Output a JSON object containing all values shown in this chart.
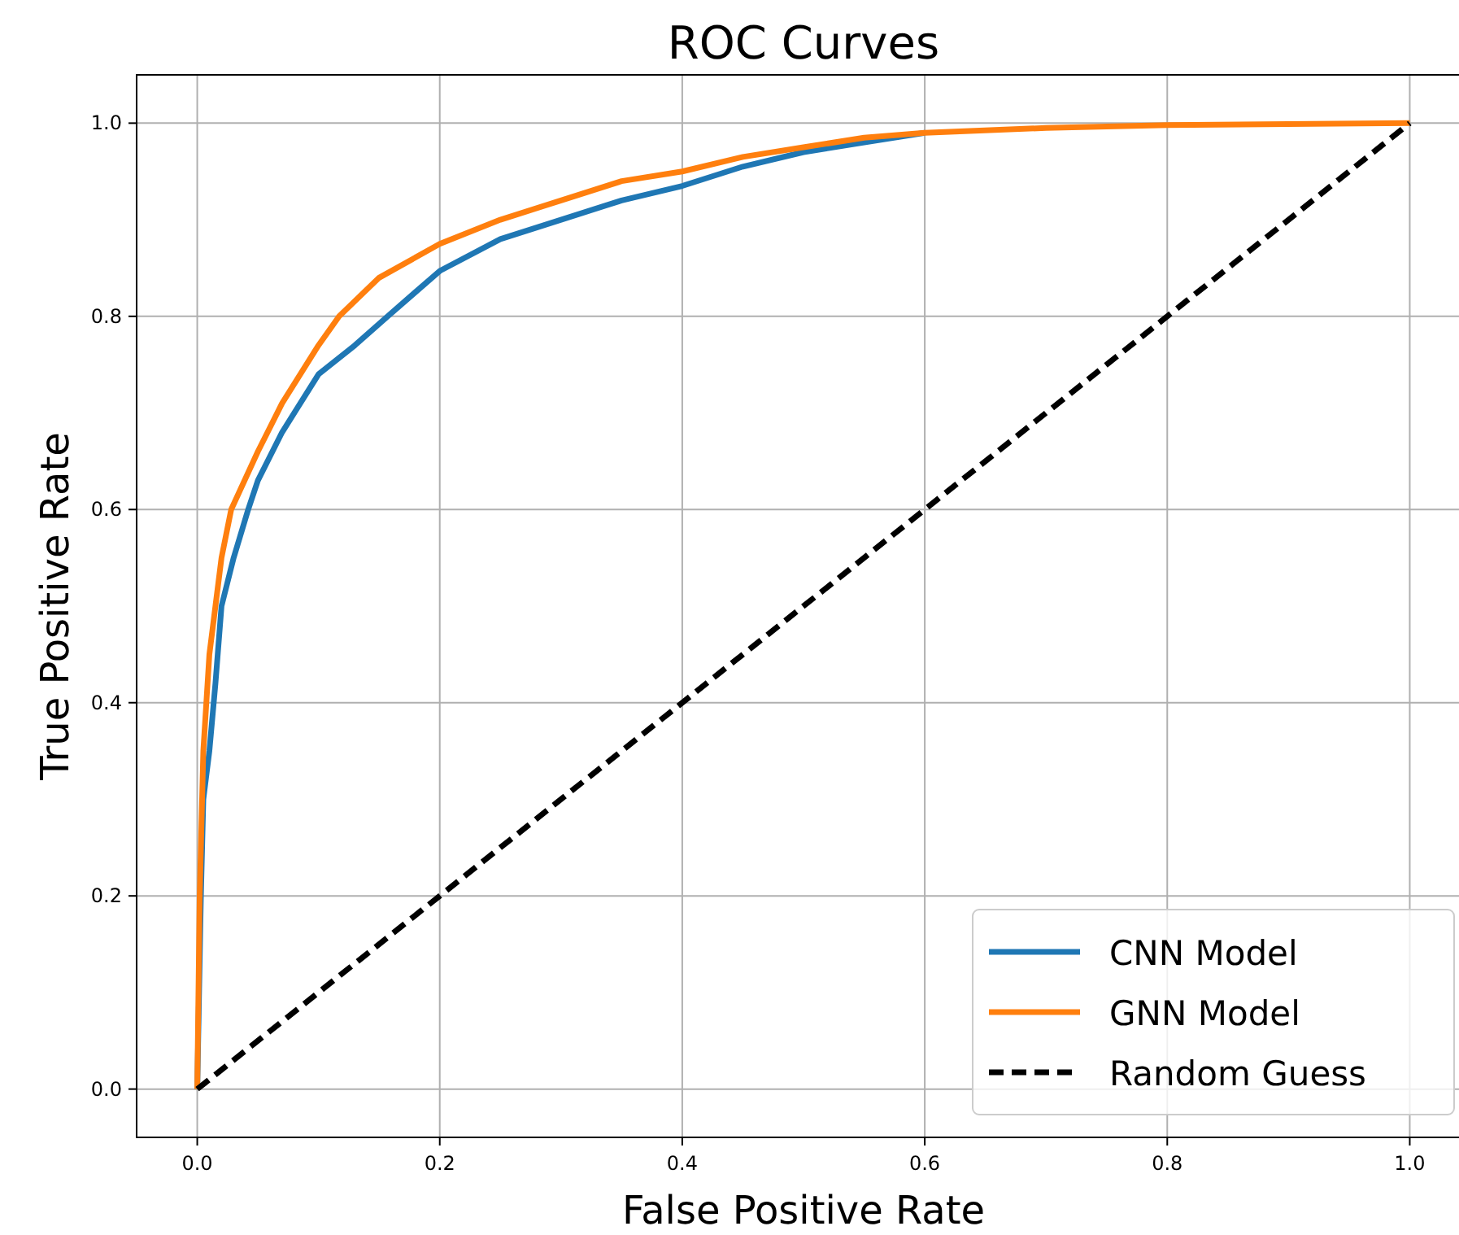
{
  "chart_data": {
    "type": "line",
    "title": "ROC Curves",
    "xlabel": "False Positive Rate",
    "ylabel": "True Positive Rate",
    "xlim": [
      -0.05,
      1.05
    ],
    "ylim": [
      -0.05,
      1.05
    ],
    "xticks": [
      {
        "value": 0,
        "label": "0.0"
      },
      0.2,
      0.4,
      0.6,
      0.8,
      {
        "value": 1,
        "label": "1.0"
      }
    ],
    "yticks": [
      {
        "value": 0,
        "label": "0.0"
      },
      0.2,
      0.4,
      0.6,
      0.8,
      {
        "value": 1,
        "label": "1.0"
      }
    ],
    "grid": true,
    "legend": "bottom right",
    "series": [
      {
        "name": "CNN Model",
        "color": "#1f77b4",
        "line_style": "solid",
        "x": [
          0,
          0.003,
          0.005,
          0.01,
          0.015,
          0.02,
          0.03,
          0.042,
          0.05,
          0.07,
          0.1,
          0.13,
          0.157,
          0.2,
          0.25,
          0.3,
          0.35,
          0.4,
          0.45,
          0.5,
          0.55,
          0.6
        ],
        "values": [
          0,
          0.2,
          0.3,
          0.35,
          0.42,
          0.5,
          0.55,
          0.6,
          0.63,
          0.68,
          0.74,
          0.77,
          0.8,
          0.847,
          0.88,
          0.9,
          0.92,
          0.935,
          0.955,
          0.97,
          0.98,
          0.99
        ]
      },
      {
        "name": "GNN Model",
        "color": "#ff7f0e",
        "line_style": "solid",
        "x": [
          0,
          0.002,
          0.005,
          0.01,
          0.015,
          0.02,
          0.028,
          0.05,
          0.07,
          0.1,
          0.117,
          0.15,
          0.2,
          0.25,
          0.3,
          0.35,
          0.4,
          0.45,
          0.5,
          0.55,
          0.6,
          0.7,
          0.8,
          1
        ],
        "values": [
          0,
          0.2,
          0.35,
          0.45,
          0.5,
          0.55,
          0.6,
          0.66,
          0.71,
          0.77,
          0.8,
          0.84,
          0.875,
          0.9,
          0.92,
          0.94,
          0.95,
          0.965,
          0.975,
          0.985,
          0.99,
          0.995,
          0.998,
          1
        ]
      },
      {
        "name": "Random Guess",
        "color": "#000000",
        "line_style": "dashed",
        "x": [
          0,
          1
        ],
        "values": [
          0,
          1
        ]
      }
    ]
  }
}
